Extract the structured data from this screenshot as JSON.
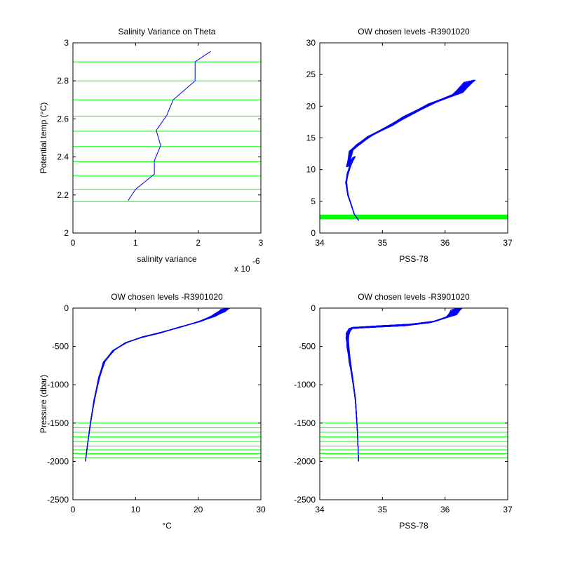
{
  "figure": {
    "background": "#ffffff"
  },
  "colors": {
    "data": "#0000ff",
    "levels": "#00ff00",
    "axes": "#000000"
  },
  "chart_data": [
    {
      "id": "ax1",
      "type": "line",
      "title": "Salinity Variance on Theta",
      "xlabel": "salinity variance",
      "ylabel": "Potential temp (°C)",
      "x_exponent_label": "x 10",
      "x_exponent_sup": "-6",
      "xlim": [
        0,
        3
      ],
      "ylim": [
        2,
        3
      ],
      "xticks": [
        0,
        1,
        2,
        3
      ],
      "yticks": [
        2,
        2.2,
        2.4,
        2.6,
        2.8,
        3
      ],
      "grid": false,
      "series": [
        {
          "color": "#0000ff",
          "x": [
            0.88,
            1.0,
            1.3,
            1.3,
            1.4,
            1.33,
            1.5,
            1.6,
            1.95,
            1.95,
            2.2
          ],
          "y": [
            2.17,
            2.23,
            2.31,
            2.38,
            2.46,
            2.54,
            2.62,
            2.7,
            2.8,
            2.9,
            2.955
          ]
        }
      ],
      "hlines": {
        "color": "#00ff00",
        "values": [
          2.165,
          2.23,
          2.3,
          2.375,
          2.455,
          2.535,
          2.615,
          2.7,
          2.8,
          2.9
        ]
      }
    },
    {
      "id": "ax2",
      "type": "line",
      "title": "OW chosen levels -R3901020",
      "xlabel": "PSS-78",
      "ylabel": "",
      "xlim": [
        34,
        37
      ],
      "ylim": [
        0,
        30
      ],
      "xticks": [
        34,
        35,
        36,
        37
      ],
      "yticks": [
        0,
        5,
        10,
        15,
        20,
        25,
        30
      ],
      "grid": false,
      "profile": {
        "color": "#0000ff",
        "x": [
          34.62,
          34.55,
          34.5,
          34.45,
          34.42,
          34.45,
          34.5,
          34.55,
          34.45,
          34.5,
          34.62,
          34.8,
          35.1,
          35.4,
          35.8,
          36.2,
          36.4
        ],
        "y": [
          2.0,
          3.0,
          4.5,
          6.0,
          8.0,
          9.5,
          11.0,
          12.0,
          10.5,
          13.0,
          14.0,
          15.3,
          16.8,
          18.5,
          20.5,
          22.0,
          24.0
        ]
      },
      "profile_count": 30,
      "band": {
        "color": "#00ff00",
        "y": [
          2.17,
          2.9
        ]
      }
    },
    {
      "id": "ax3",
      "type": "line",
      "title": "OW chosen levels -R3901020",
      "xlabel": "°C",
      "ylabel": "Pressure (dbar)",
      "xlim": [
        0,
        30
      ],
      "ylim": [
        -2500,
        0
      ],
      "xticks": [
        0,
        10,
        20,
        30
      ],
      "yticks": [
        0,
        -500,
        -1000,
        -1500,
        -2000,
        -2500
      ],
      "grid": false,
      "profile": {
        "color": "#0000ff",
        "x": [
          2.0,
          2.3,
          2.8,
          3.4,
          4.2,
          5.0,
          6.5,
          8.5,
          11.0,
          14.0,
          17.0,
          20.0,
          22.0,
          23.5,
          24.5
        ],
        "y": [
          -2000,
          -1800,
          -1500,
          -1200,
          -900,
          -700,
          -550,
          -450,
          -380,
          -320,
          -250,
          -180,
          -120,
          -60,
          0
        ]
      },
      "profile_count": 30,
      "hlines": {
        "color": "#00ff00",
        "values": [
          -1500,
          -1560,
          -1620,
          -1680,
          -1740,
          -1800,
          -1850,
          -1900,
          -1950
        ]
      }
    },
    {
      "id": "ax4",
      "type": "line",
      "title": "OW chosen levels -R3901020",
      "xlabel": "PSS-78",
      "ylabel": "",
      "xlim": [
        34,
        37
      ],
      "ylim": [
        -2500,
        0
      ],
      "xticks": [
        34,
        35,
        36,
        37
      ],
      "yticks": [
        0,
        -500,
        -1000,
        -1500,
        -2000,
        -2500
      ],
      "grid": false,
      "profile": {
        "color": "#0000ff",
        "x": [
          34.62,
          34.6,
          34.57,
          34.52,
          34.48,
          34.45,
          34.44,
          34.45,
          34.5,
          34.9,
          35.4,
          35.8,
          36.1,
          36.2
        ],
        "y": [
          -2000,
          -1600,
          -1200,
          -900,
          -700,
          -500,
          -380,
          -320,
          -260,
          -240,
          -220,
          -180,
          -100,
          0
        ]
      },
      "profile_count": 30,
      "hlines": {
        "color": "#00ff00",
        "values": [
          -1500,
          -1560,
          -1620,
          -1680,
          -1740,
          -1800,
          -1850,
          -1900,
          -1950
        ]
      }
    }
  ]
}
